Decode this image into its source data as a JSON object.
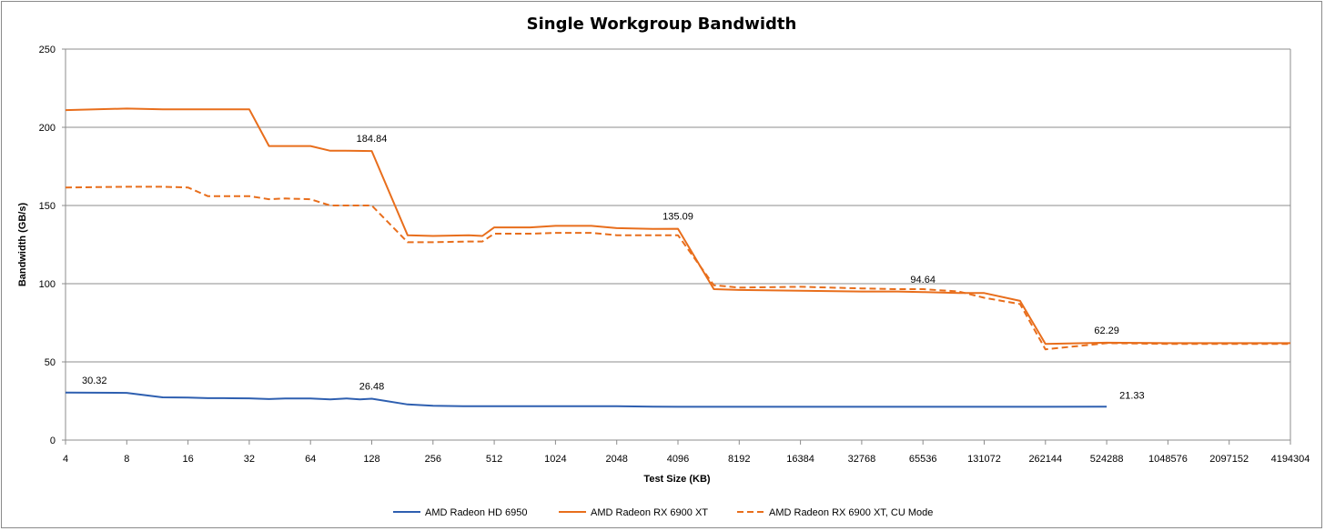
{
  "chart_data": {
    "type": "line",
    "title": "Single Workgroup Bandwidth",
    "xlabel": "Test Size (KB)",
    "ylabel": "Bandwidth (GB/s)",
    "ylim": [
      0,
      250
    ],
    "yticks": [
      0,
      50,
      100,
      150,
      200,
      250
    ],
    "x_scale": "log2",
    "xlim": [
      4,
      4194304
    ],
    "xticks": [
      4,
      8,
      16,
      32,
      64,
      128,
      256,
      512,
      1024,
      2048,
      4096,
      8192,
      16384,
      32768,
      65536,
      131072,
      262144,
      524288,
      1048576,
      2097152,
      4194304
    ],
    "grid": "horizontal",
    "legend_position": "bottom",
    "colors": {
      "hd6950": "#2e5fb0",
      "rx6900": "#e86e1c"
    },
    "series": [
      {
        "name": "AMD Radeon HD 6950",
        "color": "#2e5fb0",
        "style": "solid",
        "x": [
          4,
          8,
          12,
          16,
          20,
          24,
          32,
          40,
          48,
          64,
          80,
          96,
          112,
          128,
          192,
          256,
          384,
          512,
          768,
          1024,
          1536,
          2048,
          3072,
          4096,
          6144,
          8192,
          16384,
          32768,
          65536,
          131072,
          262144,
          524288
        ],
        "values": [
          30.32,
          30.2,
          27.3,
          27.2,
          26.8,
          26.8,
          26.7,
          26.2,
          26.6,
          26.6,
          26.0,
          26.6,
          26.0,
          26.48,
          22.8,
          22.0,
          21.6,
          21.6,
          21.6,
          21.6,
          21.6,
          21.6,
          21.4,
          21.3,
          21.3,
          21.3,
          21.3,
          21.3,
          21.3,
          21.3,
          21.3,
          21.33
        ]
      },
      {
        "name": "AMD Radeon RX 6900 XT",
        "color": "#e86e1c",
        "style": "solid",
        "x": [
          4,
          8,
          12,
          16,
          24,
          32,
          40,
          48,
          64,
          80,
          96,
          128,
          192,
          256,
          384,
          448,
          512,
          768,
          1024,
          1536,
          2048,
          3072,
          4096,
          6144,
          8192,
          16384,
          32768,
          49152,
          65536,
          98304,
          131072,
          196608,
          262144,
          524288,
          1048576,
          2097152,
          4194304
        ],
        "values": [
          211,
          212,
          211.5,
          211.5,
          211.5,
          211.5,
          188,
          188,
          188,
          185,
          185,
          184.84,
          131,
          130.5,
          131,
          130.5,
          136,
          136,
          137,
          137,
          135.5,
          135,
          135.09,
          96.5,
          96,
          95.5,
          95,
          95,
          94.64,
          94,
          94,
          89,
          61.5,
          62.29,
          62,
          62,
          62
        ]
      },
      {
        "name": "AMD Radeon RX 6900 XT, CU Mode",
        "color": "#e86e1c",
        "style": "dashed",
        "x": [
          4,
          8,
          12,
          16,
          20,
          32,
          40,
          48,
          64,
          80,
          96,
          128,
          192,
          256,
          384,
          448,
          512,
          768,
          1024,
          1536,
          2048,
          3072,
          4096,
          6144,
          8192,
          16384,
          32768,
          49152,
          65536,
          98304,
          131072,
          196608,
          262144,
          524288,
          1048576,
          2097152,
          4194304
        ],
        "values": [
          161.5,
          162,
          162,
          161.5,
          156,
          156,
          154,
          154.5,
          154,
          150,
          150,
          150,
          126.5,
          126.5,
          127,
          127,
          132,
          132,
          132.5,
          132.5,
          131,
          131,
          131,
          99,
          97.5,
          98,
          97,
          96.5,
          96.5,
          95,
          91,
          87,
          58,
          62,
          61.5,
          61.5,
          61.5
        ]
      }
    ],
    "annotations": [
      {
        "series": 0,
        "x": 4,
        "y": 30.32,
        "text": "30.32"
      },
      {
        "series": 0,
        "x": 128,
        "y": 26.48,
        "text": "26.48"
      },
      {
        "series": 0,
        "x": 524288,
        "y": 21.33,
        "text": "21.33"
      },
      {
        "series": 1,
        "x": 128,
        "y": 184.84,
        "text": "184.84"
      },
      {
        "series": 1,
        "x": 4096,
        "y": 135.09,
        "text": "135.09"
      },
      {
        "series": 1,
        "x": 65536,
        "y": 94.64,
        "text": "94.64"
      },
      {
        "series": 1,
        "x": 524288,
        "y": 62.29,
        "text": "62.29"
      }
    ]
  }
}
